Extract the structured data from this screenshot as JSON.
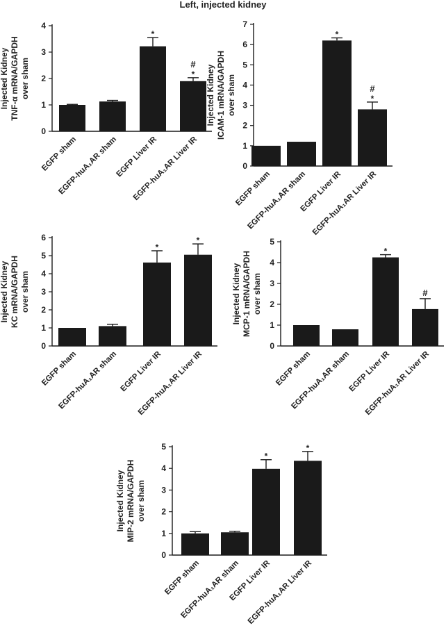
{
  "figure_title": "Left, injected kidney",
  "colors": {
    "bar": "#1a1a1a",
    "axis": "#1a1a1a",
    "text": "#222222"
  },
  "chart_data": [
    {
      "id": "tnf",
      "type": "bar",
      "title": "",
      "ylabel_lines": [
        "Injected Kidney",
        "TNF-α mRNA/GAPDH",
        "over sham"
      ],
      "categories": [
        "EGFP sham",
        "EGFP-huA₁AR sham",
        "EGFP Liver IR",
        "EGFP-huA₁AR Liver IR"
      ],
      "values": [
        1.0,
        1.13,
        3.22,
        1.9
      ],
      "errors": [
        0.02,
        0.04,
        0.33,
        0.13
      ],
      "significance": [
        [],
        [],
        [
          "*"
        ],
        [
          "*",
          "#"
        ]
      ],
      "ylim": [
        0,
        4
      ],
      "yticks": [
        0,
        1,
        2,
        3,
        4
      ]
    },
    {
      "id": "icam",
      "type": "bar",
      "title": "",
      "ylabel_lines": [
        "Injected Kidney",
        "ICAM-1 mRNA/GAPDH",
        "over sham"
      ],
      "categories": [
        "EGFP sham",
        "EGFP-huA₁AR sham",
        "EGFP Liver IR",
        "EGFP-huA₁AR Liver IR"
      ],
      "values": [
        1.0,
        1.2,
        6.2,
        2.8
      ],
      "errors": [
        0.0,
        0.0,
        0.13,
        0.36
      ],
      "significance": [
        [],
        [],
        [
          "*"
        ],
        [
          "*",
          "#"
        ]
      ],
      "ylim": [
        0,
        7
      ],
      "yticks": [
        0,
        1,
        2,
        3,
        4,
        5,
        6,
        7
      ]
    },
    {
      "id": "kc",
      "type": "bar",
      "title": "",
      "ylabel_lines": [
        "Injected Kidney",
        "KC mRNA/GAPDH",
        "over sham"
      ],
      "categories": [
        "EGFP sham",
        "EGFP-huA₁AR sham",
        "EGFP Liver IR",
        "EGFP-huA₁AR Liver IR"
      ],
      "values": [
        1.0,
        1.1,
        4.62,
        5.05
      ],
      "errors": [
        0.0,
        0.1,
        0.65,
        0.6
      ],
      "significance": [
        [],
        [],
        [
          "*"
        ],
        [
          "*"
        ]
      ],
      "ylim": [
        0,
        6
      ],
      "yticks": [
        0,
        1,
        2,
        3,
        4,
        5,
        6
      ]
    },
    {
      "id": "mcp",
      "type": "bar",
      "title": "",
      "ylabel_lines": [
        "Injected Kidney",
        "MCP-1 mRNA/GAPDH",
        "over sham"
      ],
      "categories": [
        "EGFP sham",
        "EGFP-huA₁AR sham",
        "EGFP Liver IR",
        "EGFP-huA₁AR Liver IR"
      ],
      "values": [
        1.0,
        0.8,
        4.25,
        1.77
      ],
      "errors": [
        0.0,
        0.0,
        0.13,
        0.5
      ],
      "significance": [
        [],
        [],
        [
          "*"
        ],
        [
          "#"
        ]
      ],
      "ylim": [
        0,
        5
      ],
      "yticks": [
        0,
        1,
        2,
        3,
        4,
        5
      ]
    },
    {
      "id": "mip",
      "type": "bar",
      "title": "",
      "ylabel_lines": [
        "Injected Kidney",
        "MIP-2 mRNA/GAPDH",
        "over sham"
      ],
      "categories": [
        "EGFP sham",
        "EGFP-huA₁AR sham",
        "EGFP Liver IR",
        "EGFP-huA₁AR Liver IR"
      ],
      "values": [
        1.0,
        1.05,
        3.98,
        4.35
      ],
      "errors": [
        0.08,
        0.05,
        0.42,
        0.43
      ],
      "significance": [
        [],
        [],
        [
          "*"
        ],
        [
          "*"
        ]
      ],
      "ylim": [
        0,
        5
      ],
      "yticks": [
        0,
        1,
        2,
        3,
        4,
        5
      ]
    }
  ]
}
